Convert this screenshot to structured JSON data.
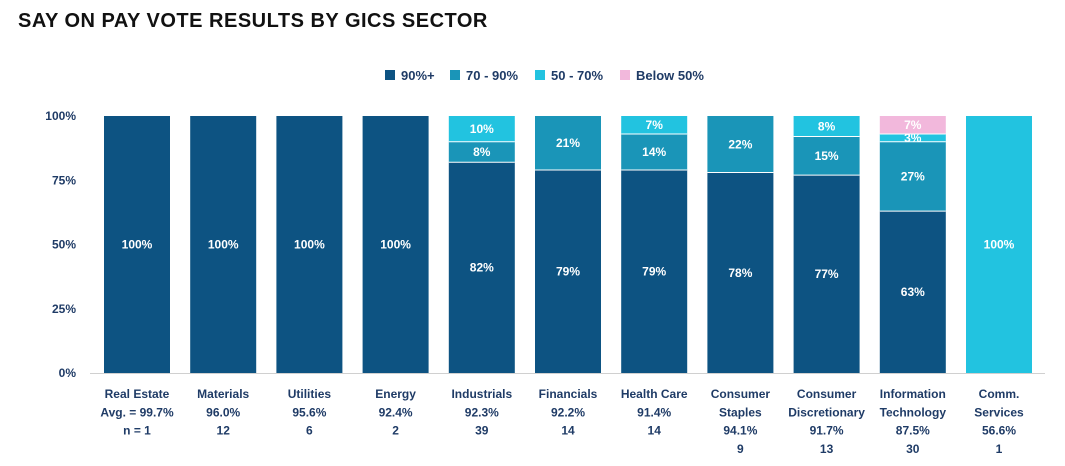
{
  "title": "SAY ON PAY VOTE RESULTS BY GICS SECTOR",
  "chart_data": {
    "type": "bar",
    "stacked": true,
    "title": "SAY ON PAY VOTE RESULTS BY GICS SECTOR",
    "ylim": [
      0,
      100
    ],
    "yticks": [
      "0%",
      "25%",
      "50%",
      "75%",
      "100%"
    ],
    "legend_position": "top",
    "categories": [
      {
        "name": "Real Estate",
        "lines": [
          "Real Estate",
          "Avg. = 99.7%",
          "n = 1"
        ]
      },
      {
        "name": "Materials",
        "lines": [
          "Materials",
          "96.0%",
          "12"
        ]
      },
      {
        "name": "Utilities",
        "lines": [
          "Utilities",
          "95.6%",
          "6"
        ]
      },
      {
        "name": "Energy",
        "lines": [
          "Energy",
          "92.4%",
          "2"
        ]
      },
      {
        "name": "Industrials",
        "lines": [
          "Industrials",
          "92.3%",
          "39"
        ]
      },
      {
        "name": "Financials",
        "lines": [
          "Financials",
          "92.2%",
          "14"
        ]
      },
      {
        "name": "Health Care",
        "lines": [
          "Health Care",
          "91.4%",
          "14"
        ]
      },
      {
        "name": "Consumer Staples",
        "lines": [
          "Consumer",
          "Staples",
          "94.1%",
          "9"
        ]
      },
      {
        "name": "Consumer Discretionary",
        "lines": [
          "Consumer",
          "Discretionary",
          "91.7%",
          "13"
        ]
      },
      {
        "name": "Information Technology",
        "lines": [
          "Information",
          "Technology",
          "87.5%",
          "30"
        ]
      },
      {
        "name": "Comm. Services",
        "lines": [
          "Comm.",
          "Services",
          "56.6%",
          "1"
        ]
      }
    ],
    "series": [
      {
        "name": "90%+",
        "color": "#0d5382",
        "values": [
          100,
          100,
          100,
          100,
          82,
          79,
          79,
          78,
          77,
          63,
          0
        ],
        "labels": [
          "100%",
          "100%",
          "100%",
          "100%",
          "82%",
          "79%",
          "79%",
          "78%",
          "77%",
          "63%",
          ""
        ]
      },
      {
        "name": "70 - 90%",
        "color": "#1a95b8",
        "values": [
          0,
          0,
          0,
          0,
          8,
          21,
          14,
          22,
          15,
          27,
          0
        ],
        "labels": [
          "",
          "",
          "",
          "",
          "8%",
          "21%",
          "14%",
          "22%",
          "15%",
          "27%",
          ""
        ]
      },
      {
        "name": "50 - 70%",
        "color": "#22c3e0",
        "values": [
          0,
          0,
          0,
          0,
          10,
          0,
          7,
          0,
          8,
          3,
          100
        ],
        "labels": [
          "",
          "",
          "",
          "",
          "10%",
          "",
          "7%",
          "",
          "8%",
          "3%",
          "100%"
        ]
      },
      {
        "name": "Below 50%",
        "color": "#f2b8dc",
        "values": [
          0,
          0,
          0,
          0,
          0,
          0,
          0,
          0,
          0,
          7,
          0
        ],
        "labels": [
          "",
          "",
          "",
          "",
          "",
          "",
          "",
          "",
          "",
          "7%",
          ""
        ]
      }
    ]
  }
}
